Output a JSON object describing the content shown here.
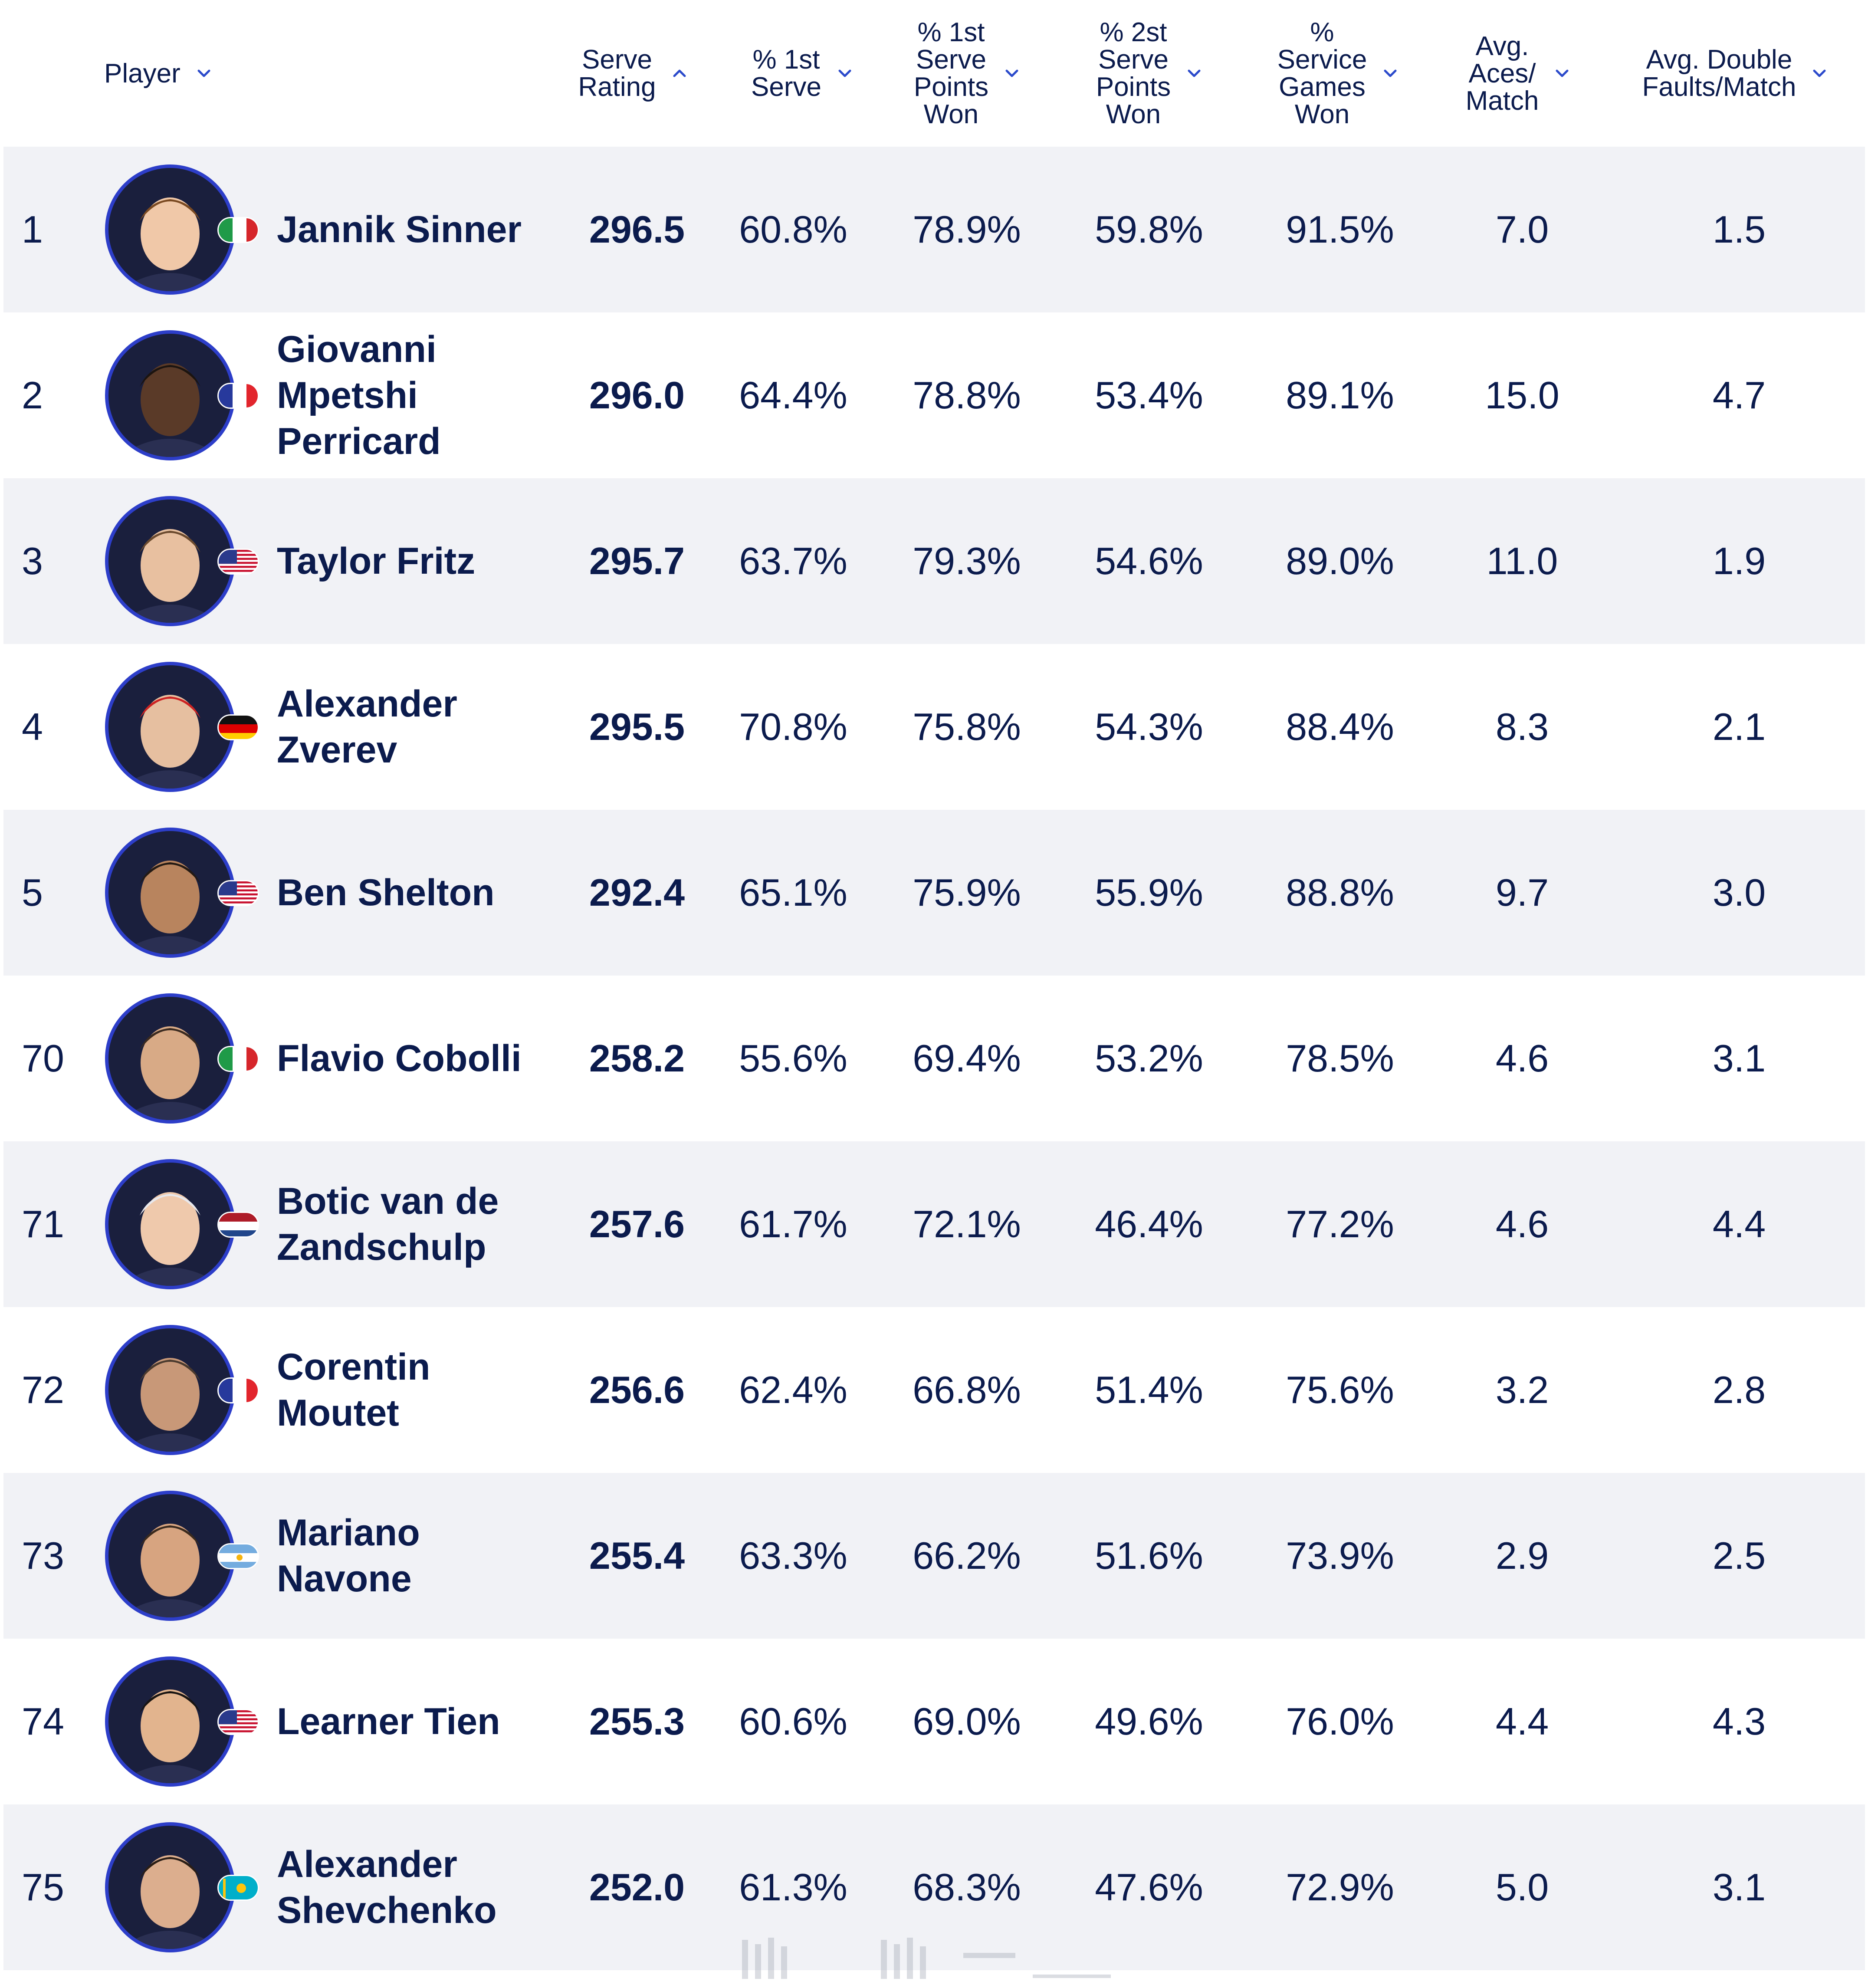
{
  "colors": {
    "text": "#0b1b4d",
    "accent": "#2b4acb",
    "row_shaded": "#f1f2f6",
    "avatar_ring": "#2d3ec9",
    "avatar_bg": "#1a1f3d"
  },
  "header": {
    "columns": [
      {
        "key": "player",
        "label": "Player",
        "sort_icon": "chevron-down-icon"
      },
      {
        "key": "serve_rating",
        "label": "Serve\nRating",
        "sort_icon": "chevron-up-icon"
      },
      {
        "key": "first_serve",
        "label": "% 1st\nServe",
        "sort_icon": "chevron-down-icon"
      },
      {
        "key": "first_serve_won",
        "label": "% 1st\nServe\nPoints\nWon",
        "sort_icon": "chevron-down-icon"
      },
      {
        "key": "second_serve_won",
        "label": "% 2st\nServe\nPoints\nWon",
        "sort_icon": "chevron-down-icon"
      },
      {
        "key": "service_games_won",
        "label": "%\nService\nGames\nWon",
        "sort_icon": "chevron-down-icon"
      },
      {
        "key": "aces",
        "label": "Avg.\nAces/\nMatch",
        "sort_icon": "chevron-down-icon"
      },
      {
        "key": "double_faults",
        "label": "Avg. Double\nFaults/Match",
        "sort_icon": "chevron-down-icon"
      }
    ]
  },
  "rows": [
    {
      "rank": "1",
      "name": "Jannik Sinner",
      "flag": "italy-flag-icon",
      "rating": "296.5",
      "first_serve": "60.8%",
      "first_won": "78.9%",
      "second_won": "59.8%",
      "games_won": "91.5%",
      "aces": "7.0",
      "df": "1.5"
    },
    {
      "rank": "2",
      "name": "Giovanni\nMpetshi\nPerricard",
      "flag": "france-flag-icon",
      "rating": "296.0",
      "first_serve": "64.4%",
      "first_won": "78.8%",
      "second_won": "53.4%",
      "games_won": "89.1%",
      "aces": "15.0",
      "df": "4.7"
    },
    {
      "rank": "3",
      "name": "Taylor Fritz",
      "flag": "usa-flag-icon",
      "rating": "295.7",
      "first_serve": "63.7%",
      "first_won": "79.3%",
      "second_won": "54.6%",
      "games_won": "89.0%",
      "aces": "11.0",
      "df": "1.9"
    },
    {
      "rank": "4",
      "name": "Alexander\nZverev",
      "flag": "germany-flag-icon",
      "rating": "295.5",
      "first_serve": "70.8%",
      "first_won": "75.8%",
      "second_won": "54.3%",
      "games_won": "88.4%",
      "aces": "8.3",
      "df": "2.1"
    },
    {
      "rank": "5",
      "name": "Ben Shelton",
      "flag": "usa-flag-icon",
      "rating": "292.4",
      "first_serve": "65.1%",
      "first_won": "75.9%",
      "second_won": "55.9%",
      "games_won": "88.8%",
      "aces": "9.7",
      "df": "3.0"
    },
    {
      "rank": "70",
      "name": "Flavio Cobolli",
      "flag": "italy-flag-icon",
      "rating": "258.2",
      "first_serve": "55.6%",
      "first_won": "69.4%",
      "second_won": "53.2%",
      "games_won": "78.5%",
      "aces": "4.6",
      "df": "3.1"
    },
    {
      "rank": "71",
      "name": "Botic van de\nZandschulp",
      "flag": "netherlands-flag-icon",
      "rating": "257.6",
      "first_serve": "61.7%",
      "first_won": "72.1%",
      "second_won": "46.4%",
      "games_won": "77.2%",
      "aces": "4.6",
      "df": "4.4"
    },
    {
      "rank": "72",
      "name": "Corentin\nMoutet",
      "flag": "france-flag-icon",
      "rating": "256.6",
      "first_serve": "62.4%",
      "first_won": "66.8%",
      "second_won": "51.4%",
      "games_won": "75.6%",
      "aces": "3.2",
      "df": "2.8"
    },
    {
      "rank": "73",
      "name": "Mariano\nNavone",
      "flag": "argentina-flag-icon",
      "rating": "255.4",
      "first_serve": "63.3%",
      "first_won": "66.2%",
      "second_won": "51.6%",
      "games_won": "73.9%",
      "aces": "2.9",
      "df": "2.5"
    },
    {
      "rank": "74",
      "name": "Learner Tien",
      "flag": "usa-flag-icon",
      "rating": "255.3",
      "first_serve": "60.6%",
      "first_won": "69.0%",
      "second_won": "49.6%",
      "games_won": "76.0%",
      "aces": "4.4",
      "df": "4.3"
    },
    {
      "rank": "75",
      "name": "Alexander\nShevchenko",
      "flag": "kazakhstan-flag-icon",
      "rating": "252.0",
      "first_serve": "61.3%",
      "first_won": "68.3%",
      "second_won": "47.6%",
      "games_won": "72.9%",
      "aces": "5.0",
      "df": "3.1"
    }
  ]
}
